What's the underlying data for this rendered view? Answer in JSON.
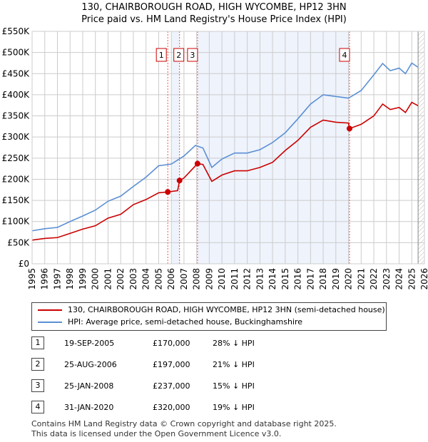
{
  "title": "130, CHAIRBOROUGH ROAD, HIGH WYCOMBE, HP12 3HN",
  "subtitle": "Price paid vs. HM Land Registry's House Price Index (HPI)",
  "chart_data": {
    "type": "line",
    "ylim": [
      0,
      550000
    ],
    "xlim": [
      1995,
      2026
    ],
    "yticks": [
      {
        "v": 0,
        "label": "£0"
      },
      {
        "v": 50000,
        "label": "£50K"
      },
      {
        "v": 100000,
        "label": "£100K"
      },
      {
        "v": 150000,
        "label": "£150K"
      },
      {
        "v": 200000,
        "label": "£200K"
      },
      {
        "v": 250000,
        "label": "£250K"
      },
      {
        "v": 300000,
        "label": "£300K"
      },
      {
        "v": 350000,
        "label": "£350K"
      },
      {
        "v": 400000,
        "label": "£400K"
      },
      {
        "v": 450000,
        "label": "£450K"
      },
      {
        "v": 500000,
        "label": "£500K"
      },
      {
        "v": 550000,
        "label": "£550K"
      }
    ],
    "xticks": [
      "1995",
      "1996",
      "1997",
      "1998",
      "1999",
      "2000",
      "2001",
      "2002",
      "2003",
      "2004",
      "2005",
      "2006",
      "2007",
      "2008",
      "2009",
      "2010",
      "2011",
      "2012",
      "2013",
      "2014",
      "2015",
      "2016",
      "2017",
      "2018",
      "2019",
      "2020",
      "2021",
      "2022",
      "2023",
      "2024",
      "2025",
      "2026"
    ],
    "series": [
      {
        "name": "130, CHAIRBOROUGH ROAD, HIGH WYCOMBE, HP12 3HN (semi-detached house)",
        "color": "#cc0000",
        "x": [
          1995,
          1996,
          1997,
          1998,
          1999,
          2000,
          2001,
          2002,
          2003,
          2004,
          2005,
          2005.72,
          2006.5,
          2006.65,
          2007,
          2008.07,
          2008.5,
          2009.2,
          2010,
          2011,
          2012,
          2013,
          2014,
          2015,
          2016,
          2017,
          2018,
          2019,
          2020,
          2020.08,
          2021,
          2022,
          2022.7,
          2023.3,
          2024,
          2024.5,
          2025,
          2025.5
        ],
        "y": [
          56000,
          60000,
          62000,
          72000,
          82000,
          90000,
          108000,
          117000,
          140000,
          152000,
          168000,
          170000,
          173000,
          197000,
          203000,
          237000,
          235000,
          195000,
          210000,
          220000,
          220000,
          228000,
          240000,
          268000,
          292000,
          323000,
          340000,
          335000,
          333000,
          320000,
          330000,
          350000,
          378000,
          365000,
          370000,
          358000,
          382000,
          374000
        ]
      },
      {
        "name": "HPI: Average price, semi-detached house, Buckinghamshire",
        "color": "#5b8fd4",
        "x": [
          1995,
          1996,
          1997,
          1998,
          1999,
          2000,
          2001,
          2002,
          2003,
          2004,
          2005,
          2006,
          2007,
          2007.9,
          2008.5,
          2009.2,
          2010,
          2011,
          2012,
          2013,
          2014,
          2015,
          2016,
          2017,
          2018,
          2019,
          2020,
          2021,
          2022,
          2022.7,
          2023.3,
          2024,
          2024.5,
          2025,
          2025.5
        ],
        "y": [
          78000,
          83000,
          86000,
          100000,
          113000,
          127000,
          148000,
          160000,
          183000,
          205000,
          232000,
          236000,
          255000,
          280000,
          274000,
          228000,
          248000,
          262000,
          262000,
          270000,
          287000,
          310000,
          343000,
          378000,
          400000,
          396000,
          392000,
          410000,
          447000,
          474000,
          457000,
          463000,
          450000,
          475000,
          465000
        ]
      }
    ],
    "sales": [
      {
        "label": "1",
        "x": 2005.72,
        "y": 170000
      },
      {
        "label": "2",
        "x": 2006.65,
        "y": 197000
      },
      {
        "label": "3",
        "x": 2008.07,
        "y": 237000
      },
      {
        "label": "4",
        "x": 2020.08,
        "y": 320000
      }
    ],
    "shaded_ranges": [
      [
        2006.0,
        2006.65
      ],
      [
        2008.07,
        2020.08
      ]
    ],
    "hatched_from": 2025.5
  },
  "legend": {
    "items": [
      "130, CHAIRBOROUGH ROAD, HIGH WYCOMBE, HP12 3HN (semi-detached house)",
      "HPI: Average price, semi-detached house, Buckinghamshire"
    ]
  },
  "table": [
    {
      "n": "1",
      "date": "19-SEP-2005",
      "price": "£170,000",
      "hpi": "28% ↓ HPI"
    },
    {
      "n": "2",
      "date": "25-AUG-2006",
      "price": "£197,000",
      "hpi": "21% ↓ HPI"
    },
    {
      "n": "3",
      "date": "25-JAN-2008",
      "price": "£237,000",
      "hpi": "15% ↓ HPI"
    },
    {
      "n": "4",
      "date": "31-JAN-2020",
      "price": "£320,000",
      "hpi": "19% ↓ HPI"
    }
  ],
  "footer": [
    "Contains HM Land Registry data © Crown copyright and database right 2025.",
    "This data is licensed under the Open Government Licence v3.0."
  ]
}
